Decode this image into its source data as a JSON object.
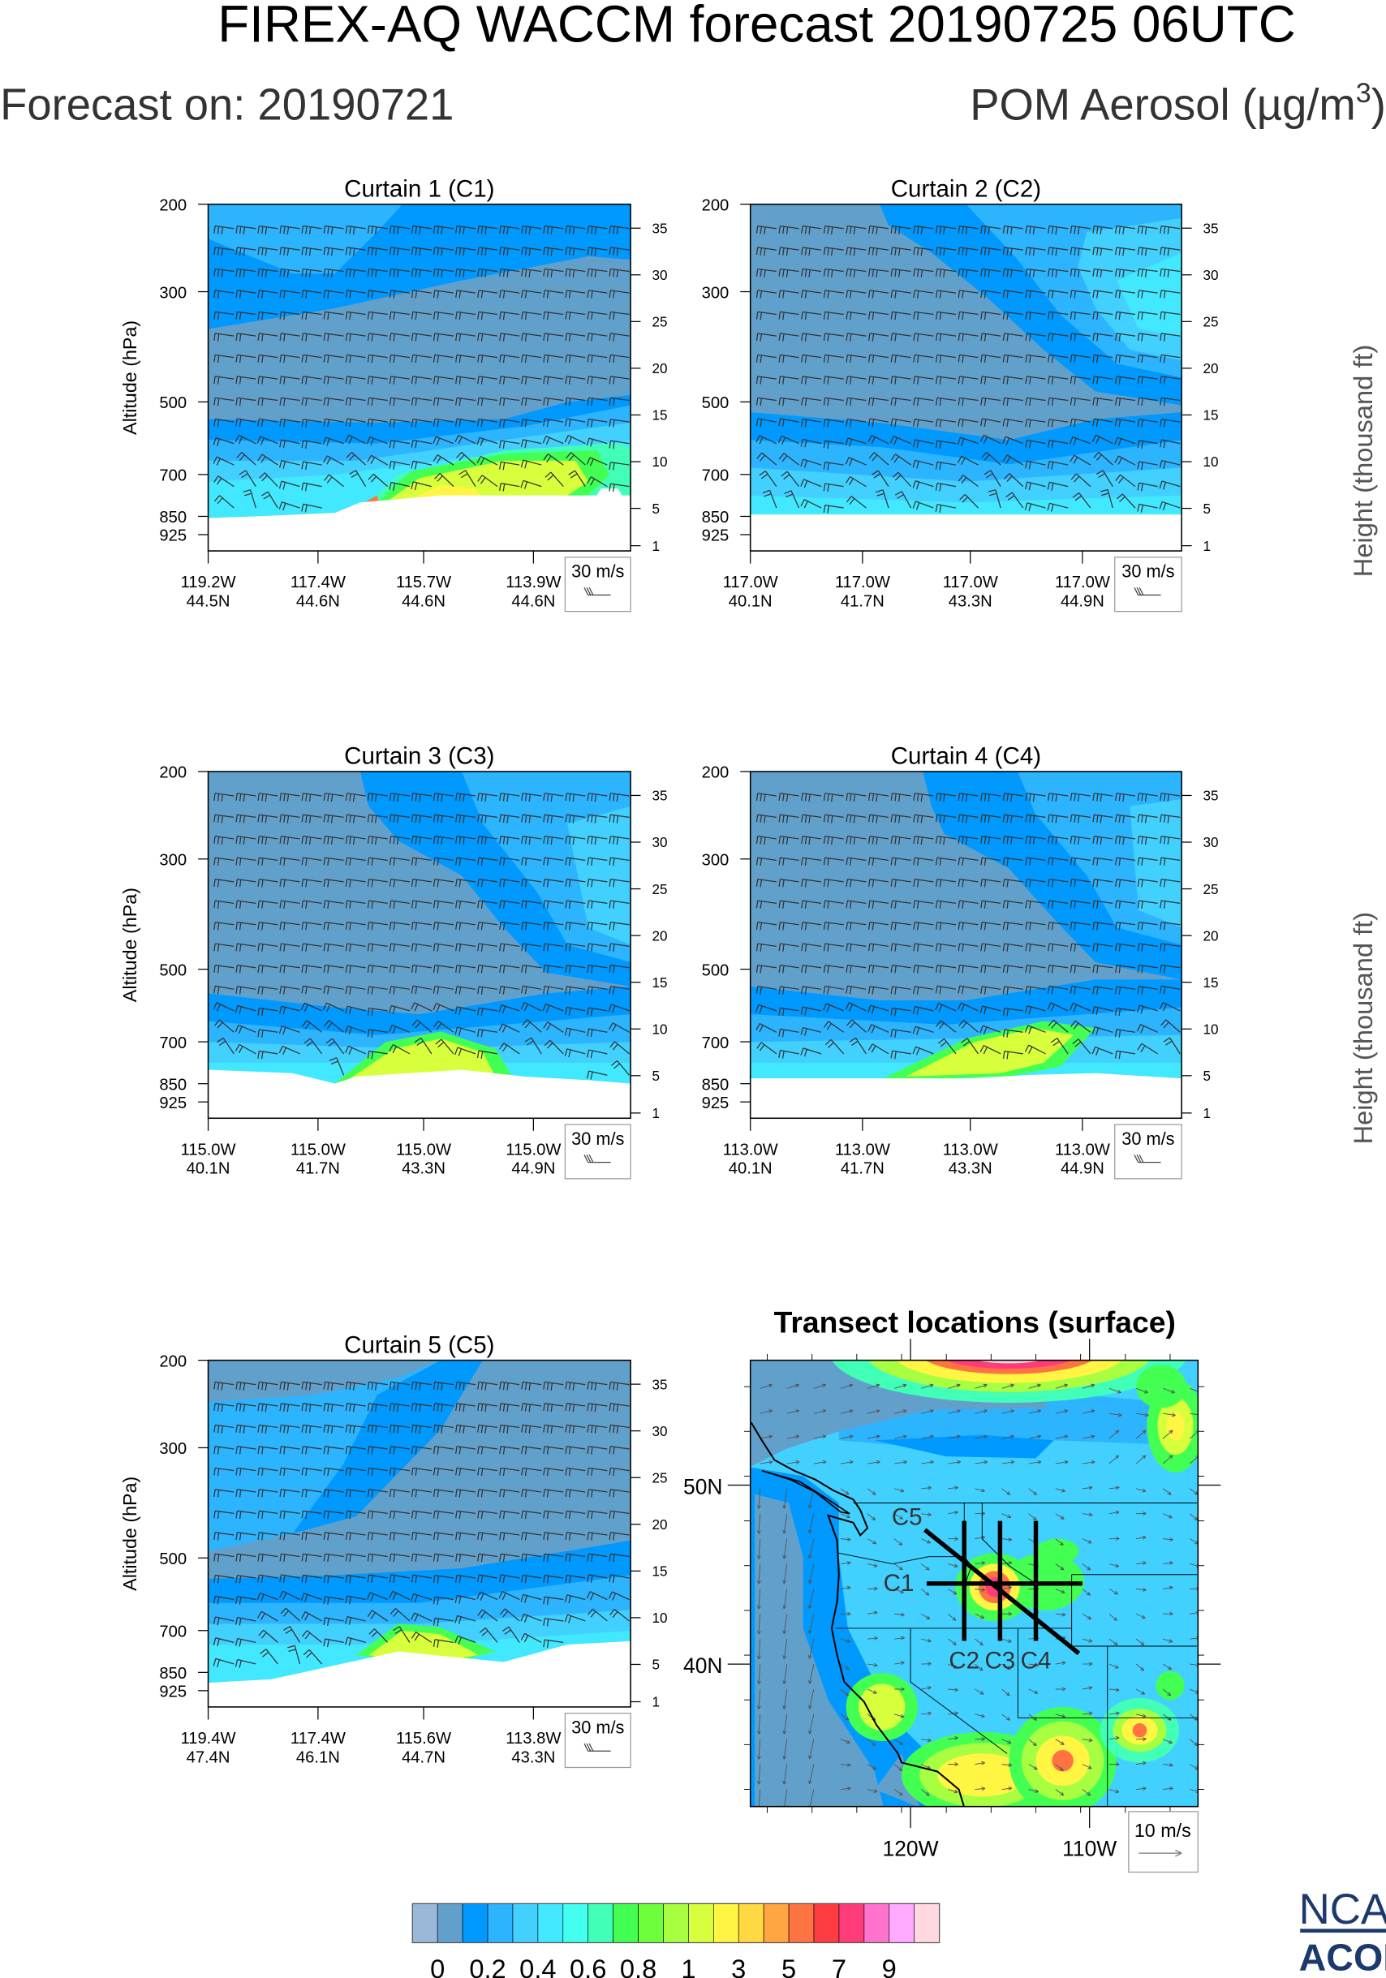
{
  "header": {
    "title": "FIREX-AQ WACCM forecast 20190725 06UTC",
    "forecast_on": "Forecast on: 20190721",
    "variable": {
      "text": "POM Aerosol (µg/m",
      "sup": "3",
      "close": ")"
    }
  },
  "colorbar": {
    "labels": [
      "0",
      "0.2",
      "0.4",
      "0.6",
      "0.8",
      "1",
      "3",
      "5",
      "7",
      "9"
    ],
    "colors": [
      "#9ab8d8",
      "#62a0cc",
      "#0099ff",
      "#2db4ff",
      "#42d0ff",
      "#42e8ff",
      "#42fff0",
      "#42ffb8",
      "#42ff52",
      "#6eff3c",
      "#a8ff42",
      "#d8ff3c",
      "#fff542",
      "#ffd842",
      "#ffa542",
      "#ff7342",
      "#ff3c42",
      "#ff3c7a",
      "#ff73cc",
      "#ffaaff",
      "#ffd8e0"
    ]
  },
  "logo": {
    "top": "NCAR",
    "bottom": "ACOM",
    "color": "#1b3a6b"
  },
  "chart_data": [
    {
      "type": "heatmap",
      "title": "Curtain 1 (C1)",
      "ylabel": "Altitude (hPa)",
      "y_ticks": [
        "200",
        "300",
        "500",
        "700",
        "850",
        "925"
      ],
      "y2label": "",
      "y2_ticks": [
        "35",
        "30",
        "25",
        "20",
        "15",
        "10",
        "5",
        "1"
      ],
      "x_tick_labels": [
        [
          "119.2W",
          "44.5N"
        ],
        [
          "117.4W",
          "44.6N"
        ],
        [
          "115.7W",
          "44.6N"
        ],
        [
          "113.9W",
          "44.6N"
        ]
      ],
      "reference_vector": "30 m/s"
    },
    {
      "type": "heatmap",
      "title": "Curtain 2 (C2)",
      "ylabel": "",
      "y_ticks": [
        "200",
        "300",
        "500",
        "700",
        "850",
        "925"
      ],
      "y2label": "Height (thousand ft)",
      "y2_ticks": [
        "35",
        "30",
        "25",
        "20",
        "15",
        "10",
        "5",
        "1"
      ],
      "x_tick_labels": [
        [
          "117.0W",
          "40.1N"
        ],
        [
          "117.0W",
          "41.7N"
        ],
        [
          "117.0W",
          "43.3N"
        ],
        [
          "117.0W",
          "44.9N"
        ]
      ],
      "reference_vector": "30 m/s"
    },
    {
      "type": "heatmap",
      "title": "Curtain 3 (C3)",
      "ylabel": "Altitude (hPa)",
      "y_ticks": [
        "200",
        "300",
        "500",
        "700",
        "850",
        "925"
      ],
      "y2label": "",
      "y2_ticks": [
        "35",
        "30",
        "25",
        "20",
        "15",
        "10",
        "5",
        "1"
      ],
      "x_tick_labels": [
        [
          "115.0W",
          "40.1N"
        ],
        [
          "115.0W",
          "41.7N"
        ],
        [
          "115.0W",
          "43.3N"
        ],
        [
          "115.0W",
          "44.9N"
        ]
      ],
      "reference_vector": "30 m/s"
    },
    {
      "type": "heatmap",
      "title": "Curtain 4 (C4)",
      "ylabel": "",
      "y_ticks": [
        "200",
        "300",
        "500",
        "700",
        "850",
        "925"
      ],
      "y2label": "Height (thousand ft)",
      "y2_ticks": [
        "35",
        "30",
        "25",
        "20",
        "15",
        "10",
        "5",
        "1"
      ],
      "x_tick_labels": [
        [
          "113.0W",
          "40.1N"
        ],
        [
          "113.0W",
          "41.7N"
        ],
        [
          "113.0W",
          "43.3N"
        ],
        [
          "113.0W",
          "44.9N"
        ]
      ],
      "reference_vector": "30 m/s"
    },
    {
      "type": "heatmap",
      "title": "Curtain 5 (C5)",
      "ylabel": "Altitude (hPa)",
      "y_ticks": [
        "200",
        "300",
        "500",
        "700",
        "850",
        "925"
      ],
      "y2label": "",
      "y2_ticks": [
        "35",
        "30",
        "25",
        "20",
        "15",
        "10",
        "5",
        "1"
      ],
      "x_tick_labels": [
        [
          "119.4W",
          "47.4N"
        ],
        [
          "117.4W",
          "46.1N"
        ],
        [
          "115.6W",
          "44.7N"
        ],
        [
          "113.8W",
          "43.3N"
        ]
      ],
      "reference_vector": "30 m/s"
    },
    {
      "type": "heatmap",
      "title": "Transect locations (surface)",
      "lat_ticks": [
        "50N",
        "40N"
      ],
      "lon_ticks": [
        "120W",
        "110W"
      ],
      "reference_vector": "10 m/s",
      "transects": [
        {
          "label": "C1",
          "start": [
            -119.1,
            44.5
          ],
          "end": [
            -110.4,
            44.5
          ]
        },
        {
          "label": "C2",
          "start": [
            -117.0,
            48.0
          ],
          "end": [
            -117.0,
            41.3
          ]
        },
        {
          "label": "C3",
          "start": [
            -115.0,
            48.0
          ],
          "end": [
            -115.0,
            41.3
          ]
        },
        {
          "label": "C4",
          "start": [
            -113.0,
            48.0
          ],
          "end": [
            -113.0,
            41.3
          ]
        },
        {
          "label": "C5",
          "start": [
            -119.2,
            47.5
          ],
          "end": [
            -110.6,
            40.6
          ]
        }
      ]
    }
  ]
}
